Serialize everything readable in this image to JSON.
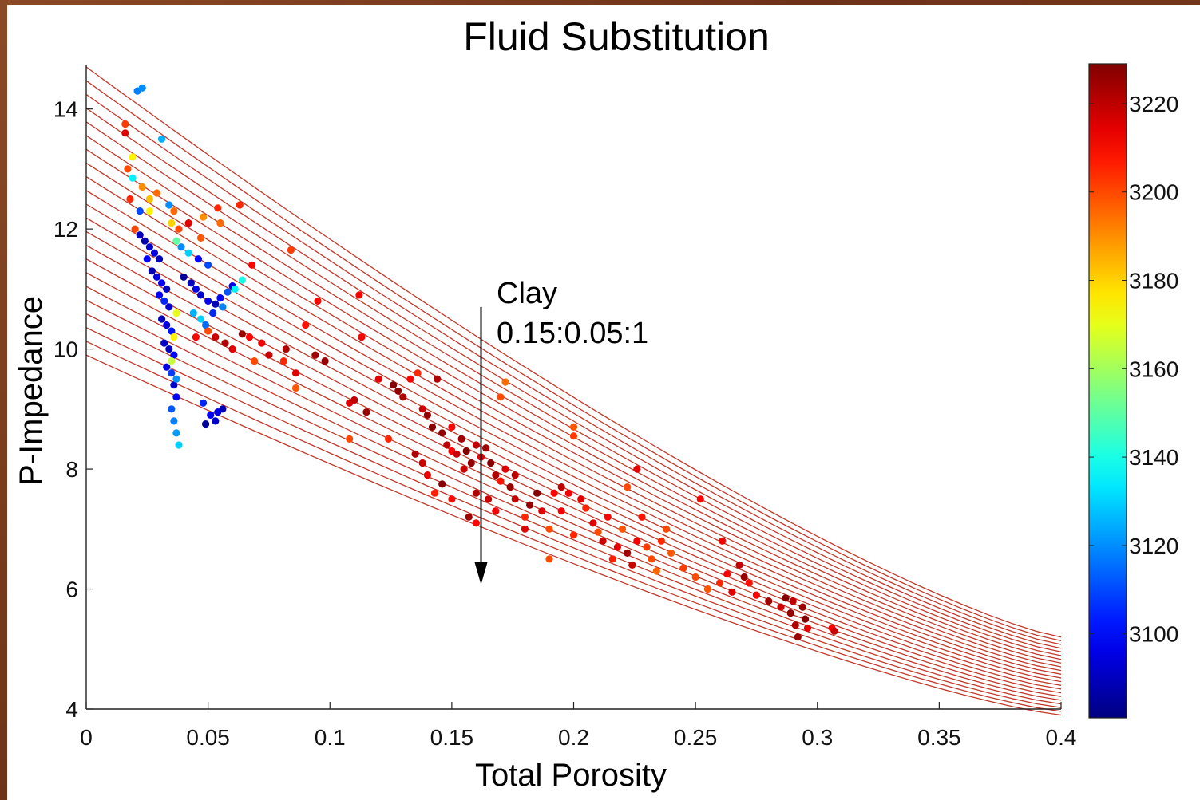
{
  "chart_data": {
    "type": "scatter",
    "title": "Fluid Substitution",
    "xlabel": "Total Porosity",
    "ylabel": "P-Impedance",
    "xlim": [
      0,
      0.4
    ],
    "ylim": [
      4,
      14.7
    ],
    "xticks": [
      "0",
      "0.05",
      "0.1",
      "0.15",
      "0.2",
      "0.25",
      "0.3",
      "0.35",
      "0.4"
    ],
    "yticks": [
      "4",
      "6",
      "8",
      "10",
      "12",
      "14"
    ],
    "colorbar": {
      "min": 3081,
      "max": 3229,
      "ticks": [
        "3100",
        "3120",
        "3140",
        "3160",
        "3180",
        "3200",
        "3220"
      ],
      "colormap": "jet"
    },
    "annotation": {
      "line1": "Clay",
      "line2": "0.15:0.05:1",
      "arrow_x": 0.162,
      "arrow_y_start": 10.7,
      "arrow_y_end": 6.1
    },
    "trend_lines": {
      "color": "#c0392b",
      "count": 22,
      "top_line": {
        "start": [
          0,
          14.7
        ],
        "end": [
          0.4,
          5.2
        ]
      },
      "bottom_line": {
        "start": [
          0,
          9.9
        ],
        "end": [
          0.4,
          3.9
        ]
      }
    },
    "series_low_porosity_cluster": {
      "points": [
        [
          0.021,
          14.3,
          3118
        ],
        [
          0.023,
          14.35,
          3120
        ],
        [
          0.031,
          13.5,
          3125
        ],
        [
          0.016,
          13.75,
          3202
        ],
        [
          0.016,
          13.6,
          3215
        ],
        [
          0.019,
          13.2,
          3175
        ],
        [
          0.017,
          13.0,
          3200
        ],
        [
          0.019,
          12.85,
          3135
        ],
        [
          0.023,
          12.7,
          3190
        ],
        [
          0.026,
          12.5,
          3183
        ],
        [
          0.029,
          12.6,
          3195
        ],
        [
          0.018,
          12.5,
          3205
        ],
        [
          0.022,
          12.3,
          3110
        ],
        [
          0.026,
          12.3,
          3175
        ],
        [
          0.034,
          12.4,
          3120
        ],
        [
          0.036,
          12.3,
          3195
        ],
        [
          0.035,
          12.1,
          3180
        ],
        [
          0.037,
          11.8,
          3150
        ],
        [
          0.038,
          12.0,
          3200
        ],
        [
          0.042,
          12.1,
          3215
        ],
        [
          0.02,
          12.0,
          3200
        ],
        [
          0.022,
          11.9,
          3090
        ],
        [
          0.024,
          11.8,
          3088
        ],
        [
          0.026,
          11.7,
          3092
        ],
        [
          0.028,
          11.6,
          3095
        ],
        [
          0.03,
          11.5,
          3090
        ],
        [
          0.025,
          11.5,
          3100
        ],
        [
          0.027,
          11.3,
          3088
        ],
        [
          0.029,
          11.2,
          3095
        ],
        [
          0.031,
          11.1,
          3098
        ],
        [
          0.033,
          11.0,
          3090
        ],
        [
          0.03,
          10.9,
          3100
        ],
        [
          0.032,
          10.8,
          3105
        ],
        [
          0.034,
          10.7,
          3093
        ],
        [
          0.031,
          10.5,
          3090
        ],
        [
          0.033,
          10.4,
          3095
        ],
        [
          0.035,
          10.3,
          3102
        ],
        [
          0.032,
          10.1,
          3092
        ],
        [
          0.034,
          10.0,
          3090
        ],
        [
          0.036,
          9.9,
          3100
        ],
        [
          0.033,
          9.7,
          3095
        ],
        [
          0.035,
          9.6,
          3108
        ],
        [
          0.036,
          9.4,
          3092
        ],
        [
          0.037,
          9.2,
          3100
        ],
        [
          0.035,
          9.0,
          3112
        ],
        [
          0.036,
          8.8,
          3118
        ],
        [
          0.037,
          8.6,
          3122
        ],
        [
          0.038,
          8.4,
          3130
        ],
        [
          0.037,
          10.6,
          3170
        ],
        [
          0.036,
          10.2,
          3175
        ],
        [
          0.035,
          9.8,
          3165
        ],
        [
          0.037,
          9.5,
          3120
        ],
        [
          0.04,
          11.2,
          3085
        ],
        [
          0.043,
          11.1,
          3090
        ],
        [
          0.045,
          11.0,
          3096
        ],
        [
          0.047,
          10.9,
          3092
        ],
        [
          0.05,
          10.8,
          3098
        ],
        [
          0.053,
          10.75,
          3090
        ],
        [
          0.055,
          10.85,
          3100
        ],
        [
          0.058,
          10.95,
          3112
        ],
        [
          0.06,
          11.05,
          3096
        ],
        [
          0.044,
          10.6,
          3125
        ],
        [
          0.047,
          10.5,
          3130
        ],
        [
          0.049,
          10.4,
          3115
        ],
        [
          0.05,
          10.3,
          3200
        ],
        [
          0.045,
          10.2,
          3210
        ],
        [
          0.052,
          10.6,
          3105
        ],
        [
          0.056,
          10.7,
          3118
        ],
        [
          0.061,
          11.0,
          3135
        ],
        [
          0.064,
          11.15,
          3140
        ],
        [
          0.046,
          11.5,
          3100
        ],
        [
          0.05,
          11.4,
          3110
        ],
        [
          0.039,
          11.7,
          3120
        ],
        [
          0.042,
          11.6,
          3130
        ],
        [
          0.048,
          9.1,
          3105
        ],
        [
          0.051,
          8.9,
          3098
        ],
        [
          0.053,
          8.8,
          3092
        ],
        [
          0.056,
          9.0,
          3088
        ],
        [
          0.049,
          8.75,
          3085
        ],
        [
          0.054,
          8.95,
          3095
        ],
        [
          0.063,
          12.4,
          3205
        ],
        [
          0.048,
          12.2,
          3190
        ],
        [
          0.047,
          11.85,
          3198
        ],
        [
          0.055,
          12.1,
          3195
        ]
      ]
    },
    "series_high_porosity_cluster": {
      "points": [
        [
          0.053,
          10.2,
          3218
        ],
        [
          0.057,
          10.1,
          3222
        ],
        [
          0.06,
          10.0,
          3215
        ],
        [
          0.064,
          10.25,
          3225
        ],
        [
          0.067,
          10.2,
          3210
        ],
        [
          0.069,
          9.8,
          3200
        ],
        [
          0.072,
          10.1,
          3212
        ],
        [
          0.075,
          9.9,
          3218
        ],
        [
          0.081,
          9.8,
          3205
        ],
        [
          0.082,
          10.0,
          3222
        ],
        [
          0.086,
          9.6,
          3215
        ],
        [
          0.086,
          9.35,
          3198
        ],
        [
          0.09,
          10.4,
          3208
        ],
        [
          0.094,
          9.9,
          3224
        ],
        [
          0.098,
          9.8,
          3225
        ],
        [
          0.095,
          10.8,
          3210
        ],
        [
          0.084,
          11.65,
          3202
        ],
        [
          0.068,
          11.4,
          3210
        ],
        [
          0.055,
          12.1,
          3205
        ],
        [
          0.054,
          12.35,
          3205
        ],
        [
          0.112,
          10.9,
          3212
        ],
        [
          0.113,
          10.2,
          3210
        ],
        [
          0.108,
          9.1,
          3216
        ],
        [
          0.11,
          9.15,
          3220
        ],
        [
          0.115,
          8.95,
          3225
        ],
        [
          0.108,
          8.5,
          3200
        ],
        [
          0.12,
          9.5,
          3214
        ],
        [
          0.124,
          8.5,
          3205
        ],
        [
          0.126,
          9.4,
          3228
        ],
        [
          0.128,
          9.3,
          3226
        ],
        [
          0.13,
          9.2,
          3222
        ],
        [
          0.133,
          9.5,
          3210
        ],
        [
          0.136,
          9.6,
          3205
        ],
        [
          0.138,
          9.0,
          3218
        ],
        [
          0.14,
          8.9,
          3225
        ],
        [
          0.142,
          8.7,
          3228
        ],
        [
          0.144,
          9.5,
          3222
        ],
        [
          0.146,
          8.6,
          3226
        ],
        [
          0.148,
          8.4,
          3220
        ],
        [
          0.15,
          8.3,
          3210
        ],
        [
          0.152,
          8.25,
          3218
        ],
        [
          0.154,
          8.5,
          3224
        ],
        [
          0.156,
          8.3,
          3228
        ],
        [
          0.158,
          8.1,
          3226
        ],
        [
          0.16,
          8.4,
          3220
        ],
        [
          0.162,
          8.2,
          3215
        ],
        [
          0.164,
          8.35,
          3224
        ],
        [
          0.166,
          8.1,
          3228
        ],
        [
          0.168,
          7.9,
          3222
        ],
        [
          0.17,
          7.8,
          3208
        ],
        [
          0.172,
          8.0,
          3215
        ],
        [
          0.174,
          7.7,
          3225
        ],
        [
          0.138,
          8.1,
          3218
        ],
        [
          0.135,
          8.25,
          3222
        ],
        [
          0.14,
          7.9,
          3214
        ],
        [
          0.143,
          7.6,
          3206
        ],
        [
          0.146,
          7.75,
          3228
        ],
        [
          0.15,
          7.5,
          3210
        ],
        [
          0.157,
          7.2,
          3224
        ],
        [
          0.16,
          7.6,
          3222
        ],
        [
          0.165,
          7.5,
          3218
        ],
        [
          0.168,
          7.3,
          3212
        ],
        [
          0.17,
          9.2,
          3200
        ],
        [
          0.172,
          9.45,
          3195
        ],
        [
          0.176,
          7.5,
          3220
        ],
        [
          0.18,
          7.2,
          3205
        ],
        [
          0.182,
          7.4,
          3226
        ],
        [
          0.185,
          7.6,
          3228
        ],
        [
          0.187,
          7.3,
          3215
        ],
        [
          0.19,
          7.0,
          3200
        ],
        [
          0.192,
          7.6,
          3210
        ],
        [
          0.195,
          7.7,
          3220
        ],
        [
          0.198,
          7.6,
          3212
        ],
        [
          0.2,
          8.7,
          3198
        ],
        [
          0.2,
          8.55,
          3202
        ],
        [
          0.203,
          7.5,
          3214
        ],
        [
          0.205,
          7.35,
          3205
        ],
        [
          0.208,
          7.1,
          3215
        ],
        [
          0.21,
          6.95,
          3200
        ],
        [
          0.212,
          6.8,
          3218
        ],
        [
          0.214,
          7.2,
          3210
        ],
        [
          0.216,
          6.5,
          3206
        ],
        [
          0.218,
          6.7,
          3214
        ],
        [
          0.22,
          7.0,
          3198
        ],
        [
          0.222,
          6.6,
          3224
        ],
        [
          0.224,
          6.4,
          3218
        ],
        [
          0.226,
          6.8,
          3212
        ],
        [
          0.228,
          7.2,
          3208
        ],
        [
          0.23,
          6.7,
          3202
        ],
        [
          0.232,
          6.5,
          3200
        ],
        [
          0.234,
          6.3,
          3196
        ],
        [
          0.236,
          6.8,
          3205
        ],
        [
          0.238,
          7.0,
          3200
        ],
        [
          0.24,
          6.6,
          3198
        ],
        [
          0.226,
          8.0,
          3215
        ],
        [
          0.222,
          7.7,
          3200
        ],
        [
          0.19,
          6.5,
          3200
        ],
        [
          0.2,
          6.9,
          3205
        ],
        [
          0.245,
          6.35,
          3202
        ],
        [
          0.25,
          6.2,
          3200
        ],
        [
          0.252,
          7.5,
          3210
        ],
        [
          0.255,
          6.0,
          3198
        ],
        [
          0.26,
          6.1,
          3205
        ],
        [
          0.263,
          6.25,
          3210
        ],
        [
          0.265,
          5.95,
          3215
        ],
        [
          0.268,
          6.4,
          3220
        ],
        [
          0.27,
          6.2,
          3225
        ],
        [
          0.272,
          6.1,
          3208
        ],
        [
          0.261,
          6.8,
          3212
        ],
        [
          0.275,
          5.9,
          3210
        ],
        [
          0.28,
          5.8,
          3224
        ],
        [
          0.285,
          5.7,
          3218
        ],
        [
          0.287,
          5.85,
          3228
        ],
        [
          0.289,
          5.6,
          3226
        ],
        [
          0.29,
          5.8,
          3220
        ],
        [
          0.291,
          5.4,
          3222
        ],
        [
          0.292,
          5.2,
          3224
        ],
        [
          0.294,
          5.7,
          3225
        ],
        [
          0.295,
          5.5,
          3228
        ],
        [
          0.296,
          5.35,
          3214
        ],
        [
          0.306,
          5.35,
          3210
        ],
        [
          0.307,
          5.3,
          3218
        ],
        [
          0.18,
          7.0,
          3215
        ],
        [
          0.195,
          7.3,
          3212
        ],
        [
          0.176,
          7.9,
          3220
        ],
        [
          0.15,
          8.7,
          3210
        ],
        [
          0.155,
          8.0,
          3218
        ],
        [
          0.16,
          7.1,
          3210
        ]
      ]
    }
  }
}
